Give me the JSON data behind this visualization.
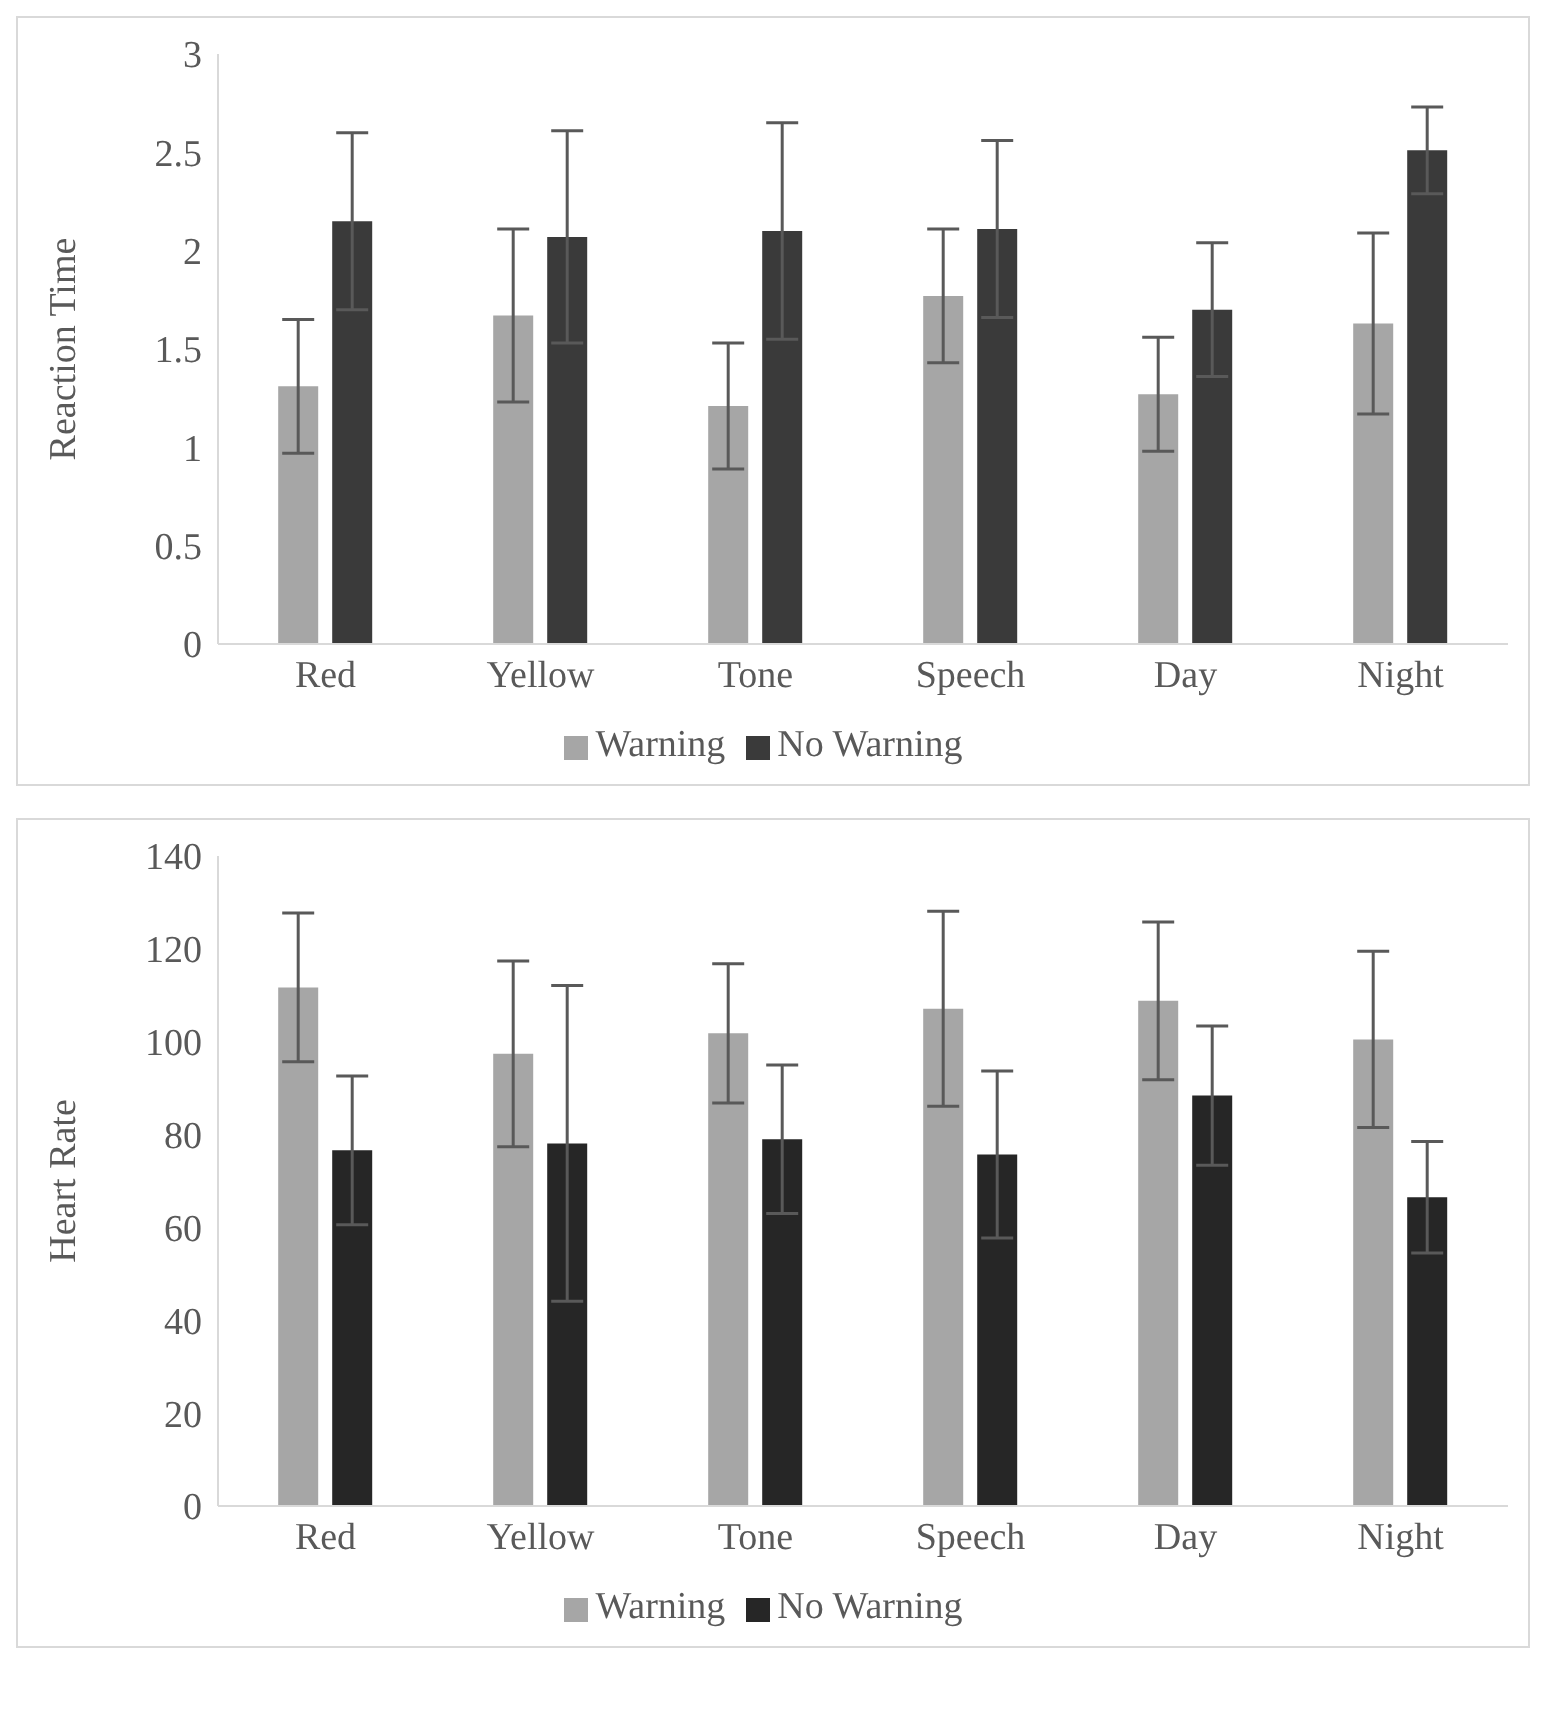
{
  "chart_data": [
    {
      "type": "bar",
      "ylabel": "Reaction Time",
      "categories": [
        "Red",
        "Yellow",
        "Tone",
        "Speech",
        "Day",
        "Night"
      ],
      "series": [
        {
          "name": "Warning",
          "color": "#a6a6a6",
          "values": [
            1.31,
            1.67,
            1.21,
            1.77,
            1.27,
            1.63
          ],
          "errors": [
            0.34,
            0.44,
            0.32,
            0.34,
            0.29,
            0.46
          ]
        },
        {
          "name": "No Warning",
          "color": "#3a3a3a",
          "values": [
            2.15,
            2.07,
            2.1,
            2.11,
            1.7,
            2.51
          ],
          "errors": [
            0.45,
            0.54,
            0.55,
            0.45,
            0.34,
            0.22
          ]
        }
      ],
      "ylim": [
        0,
        3
      ],
      "yticks": [
        0,
        0.5,
        1,
        1.5,
        2,
        2.5,
        3
      ],
      "legend": "bottom"
    },
    {
      "type": "bar",
      "ylabel": "Heart Rate",
      "categories": [
        "Red",
        "Yellow",
        "Tone",
        "Speech",
        "Day",
        "Night"
      ],
      "series": [
        {
          "name": "Warning",
          "color": "#a6a6a6",
          "values": [
            111.7,
            97.4,
            101.8,
            107.1,
            108.8,
            100.5
          ],
          "errors": [
            16,
            20,
            15,
            21,
            17,
            19
          ]
        },
        {
          "name": "No Warning",
          "color": "#262626",
          "values": [
            76.6,
            78.1,
            79,
            75.7,
            88.4,
            66.5
          ],
          "errors": [
            16,
            34,
            16,
            18,
            15,
            12
          ]
        }
      ],
      "ylim": [
        0,
        140
      ],
      "yticks": [
        0,
        20,
        40,
        60,
        80,
        100,
        120,
        140
      ],
      "legend": "bottom"
    }
  ]
}
